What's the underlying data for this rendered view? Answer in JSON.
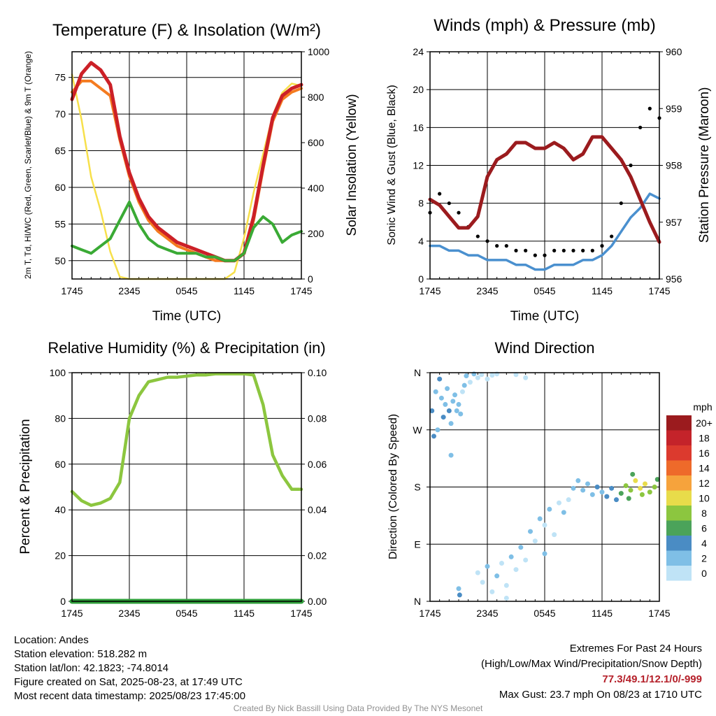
{
  "chart_data": [
    {
      "type": "line",
      "title": "Temperature (F) & Insolation (W/m²)",
      "xlabel": "Time (UTC)",
      "ylabel": "2m T, Td, HI/WC (Red, Green, Scarlet/Blue) & 9m T (Orange)",
      "y2label": "Solar Insolation (Yellow)",
      "x_ticks": [
        "1745",
        "2345",
        "0545",
        "1145",
        "1745"
      ],
      "ylim": [
        47.5,
        78.5
      ],
      "y_ticks": [
        50,
        55,
        60,
        65,
        70,
        75
      ],
      "y2lim": [
        0,
        1000
      ],
      "y2_ticks": [
        0,
        200,
        400,
        600,
        800,
        1000
      ],
      "x": [
        0,
        1,
        2,
        3,
        4,
        5,
        6,
        7,
        8,
        9,
        10,
        11,
        12,
        13,
        14,
        15,
        16,
        17,
        18,
        19,
        20,
        21,
        22,
        23,
        24
      ],
      "series": [
        {
          "name": "2m T",
          "color": "#cc2027",
          "axis": "left",
          "values": [
            72,
            75.5,
            77,
            76,
            74,
            67,
            62,
            58.5,
            56,
            54.5,
            53.5,
            52.5,
            52,
            51.5,
            51,
            50.5,
            50,
            50,
            51,
            56,
            63,
            69.5,
            72.5,
            73.5,
            74
          ]
        },
        {
          "name": "Td",
          "color": "#3aaa35",
          "axis": "left",
          "values": [
            52,
            51.5,
            51,
            52,
            53,
            55.5,
            58,
            55,
            53,
            52,
            51.5,
            51,
            51,
            51,
            50.5,
            50.5,
            50,
            50,
            51,
            54.5,
            56,
            55,
            52.5,
            53.5,
            54
          ]
        },
        {
          "name": "9m T",
          "color": "#f47b20",
          "axis": "left",
          "values": [
            73,
            74.5,
            74.5,
            73.5,
            72.5,
            66.5,
            61.5,
            58,
            55.5,
            54,
            53,
            52,
            51.5,
            51,
            50.5,
            50,
            50,
            50,
            51,
            55.5,
            62.5,
            69,
            72,
            73,
            73.5
          ]
        },
        {
          "name": "Solar Insolation",
          "color": "#f7e04b",
          "axis": "right",
          "values": [
            900,
            700,
            450,
            300,
            120,
            10,
            0,
            0,
            0,
            0,
            0,
            0,
            0,
            0,
            0,
            0,
            0,
            30,
            180,
            380,
            550,
            720,
            820,
            860,
            850
          ]
        }
      ]
    },
    {
      "type": "line",
      "title": "Winds (mph) & Pressure (mb)",
      "xlabel": "Time (UTC)",
      "ylabel": "Sonic Wind & Gust (Blue, Black)",
      "y2label": "Station Pressure (Maroon)",
      "x_ticks": [
        "1745",
        "2345",
        "0545",
        "1145",
        "1745"
      ],
      "ylim": [
        0,
        24
      ],
      "y_ticks": [
        0,
        4,
        8,
        12,
        16,
        20,
        24
      ],
      "y2lim": [
        956,
        960
      ],
      "y2_ticks": [
        956,
        957,
        958,
        959,
        960
      ],
      "x": [
        0,
        1,
        2,
        3,
        4,
        5,
        6,
        7,
        8,
        9,
        10,
        11,
        12,
        13,
        14,
        15,
        16,
        17,
        18,
        19,
        20,
        21,
        22,
        23,
        24
      ],
      "series": [
        {
          "name": "Sonic Wind",
          "color": "#4a90cf",
          "axis": "left",
          "values": [
            3.5,
            3.5,
            3,
            3,
            2.5,
            2.5,
            2,
            2,
            2,
            1.5,
            1.5,
            1,
            1,
            1.5,
            1.5,
            1.5,
            2,
            2,
            2.5,
            3.5,
            5,
            6.5,
            7.5,
            9,
            8.5
          ]
        },
        {
          "name": "Gust",
          "color": "#000000",
          "axis": "left",
          "values": [
            7,
            9,
            8,
            7,
            5.5,
            4.5,
            4,
            3.5,
            3.5,
            3,
            3,
            2.5,
            2.5,
            3,
            3,
            3,
            3,
            3,
            3.5,
            4.5,
            8,
            12,
            16,
            18,
            17
          ]
        },
        {
          "name": "Station Pressure",
          "color": "#9b1b1e",
          "axis": "right",
          "values": [
            957.4,
            957.3,
            957.1,
            956.9,
            956.9,
            957.1,
            957.8,
            958.1,
            958.2,
            958.4,
            958.4,
            958.3,
            958.3,
            958.4,
            958.3,
            958.1,
            958.2,
            958.5,
            958.5,
            958.3,
            958.1,
            957.8,
            957.4,
            957.0,
            956.65
          ]
        }
      ]
    },
    {
      "type": "line",
      "title": "Relative Humidity (%) & Precipitation (in)",
      "ylabel": "Percent & Precipitation",
      "x_ticks": [
        "1745",
        "2345",
        "0545",
        "1145",
        "1745"
      ],
      "ylim": [
        0,
        100
      ],
      "y_ticks": [
        0,
        20,
        40,
        60,
        80,
        100
      ],
      "y2lim": [
        0,
        0.1
      ],
      "y2_ticks": [
        "0.00",
        "0.02",
        "0.04",
        "0.06",
        "0.08",
        "0.10"
      ],
      "x": [
        0,
        1,
        2,
        3,
        4,
        5,
        6,
        7,
        8,
        9,
        10,
        11,
        12,
        13,
        14,
        15,
        16,
        17,
        18,
        19,
        20,
        21,
        22,
        23,
        24
      ],
      "series": [
        {
          "name": "Relative Humidity",
          "color": "#8cc63f",
          "axis": "left",
          "values": [
            48,
            44,
            42,
            43,
            45,
            52,
            80,
            90,
            96,
            97,
            98,
            98,
            98.5,
            99,
            99,
            99.5,
            99.5,
            99.5,
            99.5,
            99,
            86,
            64,
            55,
            49,
            49
          ]
        },
        {
          "name": "Precipitation",
          "color": "#2e9e3a",
          "axis": "right",
          "values": [
            0,
            0,
            0,
            0,
            0,
            0,
            0,
            0,
            0,
            0,
            0,
            0,
            0,
            0,
            0,
            0,
            0,
            0,
            0,
            0,
            0,
            0,
            0,
            0,
            0
          ]
        }
      ]
    },
    {
      "type": "scatter",
      "title": "Wind Direction",
      "ylabel": "Direction (Colored By Speed)",
      "x_ticks": [
        "1745",
        "2345",
        "0545",
        "1145",
        "1745"
      ],
      "y_ticks": [
        "N",
        "E",
        "S",
        "W",
        "N"
      ],
      "legend_title": "mph",
      "legend_labels": [
        "0",
        "2",
        "4",
        "6",
        "8",
        "10",
        "12",
        "14",
        "16",
        "18",
        "20+"
      ],
      "legend_colors": [
        "#bfe3f6",
        "#7fbfe6",
        "#4a8cc4",
        "#4ba35a",
        "#8cc63f",
        "#e8dc4a",
        "#f6a33c",
        "#ee6a2a",
        "#dc3a2e",
        "#c4232a",
        "#9b1b1e"
      ],
      "points": [
        {
          "x": 0.2,
          "y": 300,
          "speed": 4
        },
        {
          "x": 0.4,
          "y": 260,
          "speed": 4
        },
        {
          "x": 0.6,
          "y": 330,
          "speed": 3
        },
        {
          "x": 0.8,
          "y": 270,
          "speed": 2
        },
        {
          "x": 1.0,
          "y": 350,
          "speed": 4
        },
        {
          "x": 1.2,
          "y": 320,
          "speed": 3
        },
        {
          "x": 1.4,
          "y": 290,
          "speed": 5
        },
        {
          "x": 1.6,
          "y": 310,
          "speed": 3
        },
        {
          "x": 1.8,
          "y": 335,
          "speed": 2
        },
        {
          "x": 2.0,
          "y": 300,
          "speed": 4
        },
        {
          "x": 2.2,
          "y": 280,
          "speed": 2
        },
        {
          "x": 2.4,
          "y": 315,
          "speed": 3
        },
        {
          "x": 2.6,
          "y": 325,
          "speed": 2
        },
        {
          "x": 2.8,
          "y": 300,
          "speed": 3
        },
        {
          "x": 3.0,
          "y": 310,
          "speed": 2
        },
        {
          "x": 3.2,
          "y": 295,
          "speed": 2
        },
        {
          "x": 3.4,
          "y": 330,
          "speed": 1
        },
        {
          "x": 3.6,
          "y": 340,
          "speed": 2
        },
        {
          "x": 3.8,
          "y": 355,
          "speed": 2
        },
        {
          "x": 4.2,
          "y": 345,
          "speed": 1
        },
        {
          "x": 4.6,
          "y": 358,
          "speed": 2
        },
        {
          "x": 5.0,
          "y": 352,
          "speed": 1
        },
        {
          "x": 5.4,
          "y": 357,
          "speed": 1
        },
        {
          "x": 6.0,
          "y": 350,
          "speed": 1
        },
        {
          "x": 6.5,
          "y": 356,
          "speed": 1
        },
        {
          "x": 7.0,
          "y": 358,
          "speed": 1
        },
        {
          "x": 9.0,
          "y": 357,
          "speed": 1
        },
        {
          "x": 10.0,
          "y": 352,
          "speed": 1
        },
        {
          "x": 3.0,
          "y": 20,
          "speed": 3
        },
        {
          "x": 3.1,
          "y": 10,
          "speed": 4
        },
        {
          "x": 2.2,
          "y": 230,
          "speed": 3
        },
        {
          "x": 5.0,
          "y": 45,
          "speed": 1
        },
        {
          "x": 5.5,
          "y": 30,
          "speed": 1
        },
        {
          "x": 6.0,
          "y": 55,
          "speed": 2
        },
        {
          "x": 6.5,
          "y": 15,
          "speed": 1
        },
        {
          "x": 7.0,
          "y": 40,
          "speed": 2
        },
        {
          "x": 7.5,
          "y": 60,
          "speed": 1
        },
        {
          "x": 8.0,
          "y": 25,
          "speed": 1
        },
        {
          "x": 8.5,
          "y": 70,
          "speed": 2
        },
        {
          "x": 9.0,
          "y": 50,
          "speed": 1
        },
        {
          "x": 9.5,
          "y": 85,
          "speed": 2
        },
        {
          "x": 10.0,
          "y": 65,
          "speed": 1
        },
        {
          "x": 10.5,
          "y": 110,
          "speed": 2
        },
        {
          "x": 11.0,
          "y": 95,
          "speed": 1
        },
        {
          "x": 11.5,
          "y": 130,
          "speed": 2
        },
        {
          "x": 12.0,
          "y": 120,
          "speed": 1
        },
        {
          "x": 12.5,
          "y": 145,
          "speed": 2
        },
        {
          "x": 13.0,
          "y": 105,
          "speed": 1
        },
        {
          "x": 13.5,
          "y": 155,
          "speed": 1
        },
        {
          "x": 14.0,
          "y": 140,
          "speed": 2
        },
        {
          "x": 14.5,
          "y": 160,
          "speed": 1
        },
        {
          "x": 8.0,
          "y": 5,
          "speed": 1
        },
        {
          "x": 12.0,
          "y": 75,
          "speed": 2
        },
        {
          "x": 15.0,
          "y": 178,
          "speed": 3
        },
        {
          "x": 15.5,
          "y": 190,
          "speed": 2
        },
        {
          "x": 16.0,
          "y": 175,
          "speed": 3
        },
        {
          "x": 16.5,
          "y": 185,
          "speed": 2
        },
        {
          "x": 17.0,
          "y": 168,
          "speed": 3
        },
        {
          "x": 17.5,
          "y": 180,
          "speed": 4
        },
        {
          "x": 18.0,
          "y": 172,
          "speed": 3
        },
        {
          "x": 18.5,
          "y": 165,
          "speed": 4
        },
        {
          "x": 19.0,
          "y": 178,
          "speed": 5
        },
        {
          "x": 19.5,
          "y": 160,
          "speed": 5
        },
        {
          "x": 20.0,
          "y": 170,
          "speed": 7
        },
        {
          "x": 20.5,
          "y": 182,
          "speed": 8
        },
        {
          "x": 21.0,
          "y": 175,
          "speed": 9
        },
        {
          "x": 21.5,
          "y": 190,
          "speed": 10
        },
        {
          "x": 22.0,
          "y": 178,
          "speed": 11
        },
        {
          "x": 22.5,
          "y": 185,
          "speed": 10
        },
        {
          "x": 23.0,
          "y": 172,
          "speed": 9
        },
        {
          "x": 23.5,
          "y": 180,
          "speed": 8
        },
        {
          "x": 21.2,
          "y": 200,
          "speed": 7
        },
        {
          "x": 22.2,
          "y": 168,
          "speed": 8
        },
        {
          "x": 23.8,
          "y": 192,
          "speed": 6
        },
        {
          "x": 20.8,
          "y": 162,
          "speed": 6
        }
      ]
    }
  ],
  "footer": {
    "location": "Location: Andes",
    "elevation": "Station elevation: 518.282 m",
    "latlon": "Station lat/lon: 42.1823; -74.8014",
    "created": "Figure created on Sat, 2025-08-23, at 17:49 UTC",
    "recent": "Most recent data timestamp: 2025/08/23 17:45:00",
    "extremes_title": "Extremes For Past 24 Hours",
    "extremes_desc": "(High/Low/Max Wind/Precipitation/Snow Depth)",
    "extremes_values": "77.3/49.1/12.1/0/-999",
    "max_gust": "Max Gust: 23.7 mph On 08/23 at 1710 UTC",
    "credit": "Created By Nick Bassill Using Data Provided By The NYS Mesonet"
  }
}
